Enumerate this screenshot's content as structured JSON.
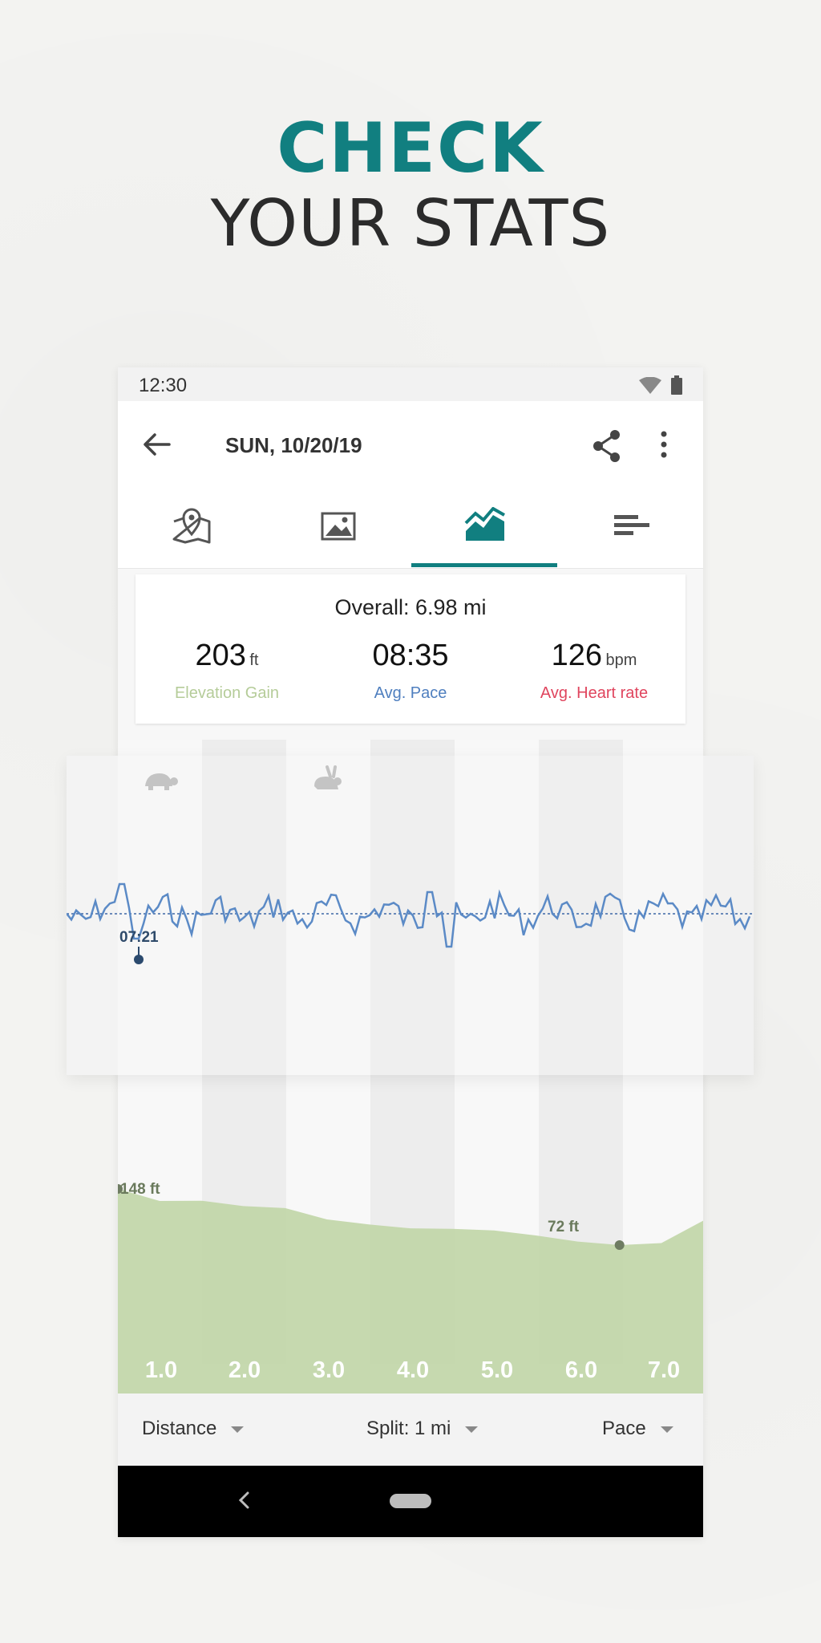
{
  "hero": {
    "line1": "CHECK",
    "line2": "YOUR STATS"
  },
  "status_bar": {
    "time": "12:30"
  },
  "app_bar": {
    "title": "SUN, 10/20/19"
  },
  "tabs": [
    {
      "icon": "map-pin-icon",
      "active": false
    },
    {
      "icon": "image-icon",
      "active": false
    },
    {
      "icon": "chart-icon",
      "active": true
    },
    {
      "icon": "splits-icon",
      "active": false
    }
  ],
  "summary": {
    "overall": "Overall: 6.98 mi",
    "stats": [
      {
        "value": "203",
        "unit": "ft",
        "label": "Elevation Gain",
        "color": "#b5cc99"
      },
      {
        "value": "08:35",
        "unit": "",
        "label": "Avg. Pace",
        "color": "#4f7fbf"
      },
      {
        "value": "126",
        "unit": "bpm",
        "label": "Avg. Heart rate",
        "color": "#e0455e"
      }
    ]
  },
  "pace_chart": {
    "low_marker_label": "07:21",
    "slow_icon": "turtle-icon",
    "fast_icon": "rabbit-icon",
    "line_color": "#5b8ac6"
  },
  "elevation_chart": {
    "max_label": "148 ft",
    "min_label": "72 ft",
    "fill_color": "#c3d7ab"
  },
  "chart_data": [
    {
      "type": "area",
      "x": [
        0.0,
        0.5,
        1.0,
        1.5,
        2.0,
        2.5,
        3.0,
        3.5,
        4.0,
        4.5,
        5.0,
        5.5,
        6.0,
        6.5,
        7.0
      ],
      "y": [
        148,
        135,
        132,
        128,
        122,
        110,
        100,
        98,
        94,
        95,
        85,
        80,
        72,
        78,
        105
      ],
      "xticks": [
        "1.0",
        "2.0",
        "3.0",
        "4.0",
        "5.0",
        "6.0",
        "7.0"
      ],
      "annotations": [
        "148 ft",
        "72 ft"
      ],
      "xlabel": "",
      "ylabel": ""
    }
  ],
  "bottom_bar": {
    "distance": "Distance",
    "split": "Split: 1 mi",
    "pace": "Pace"
  }
}
